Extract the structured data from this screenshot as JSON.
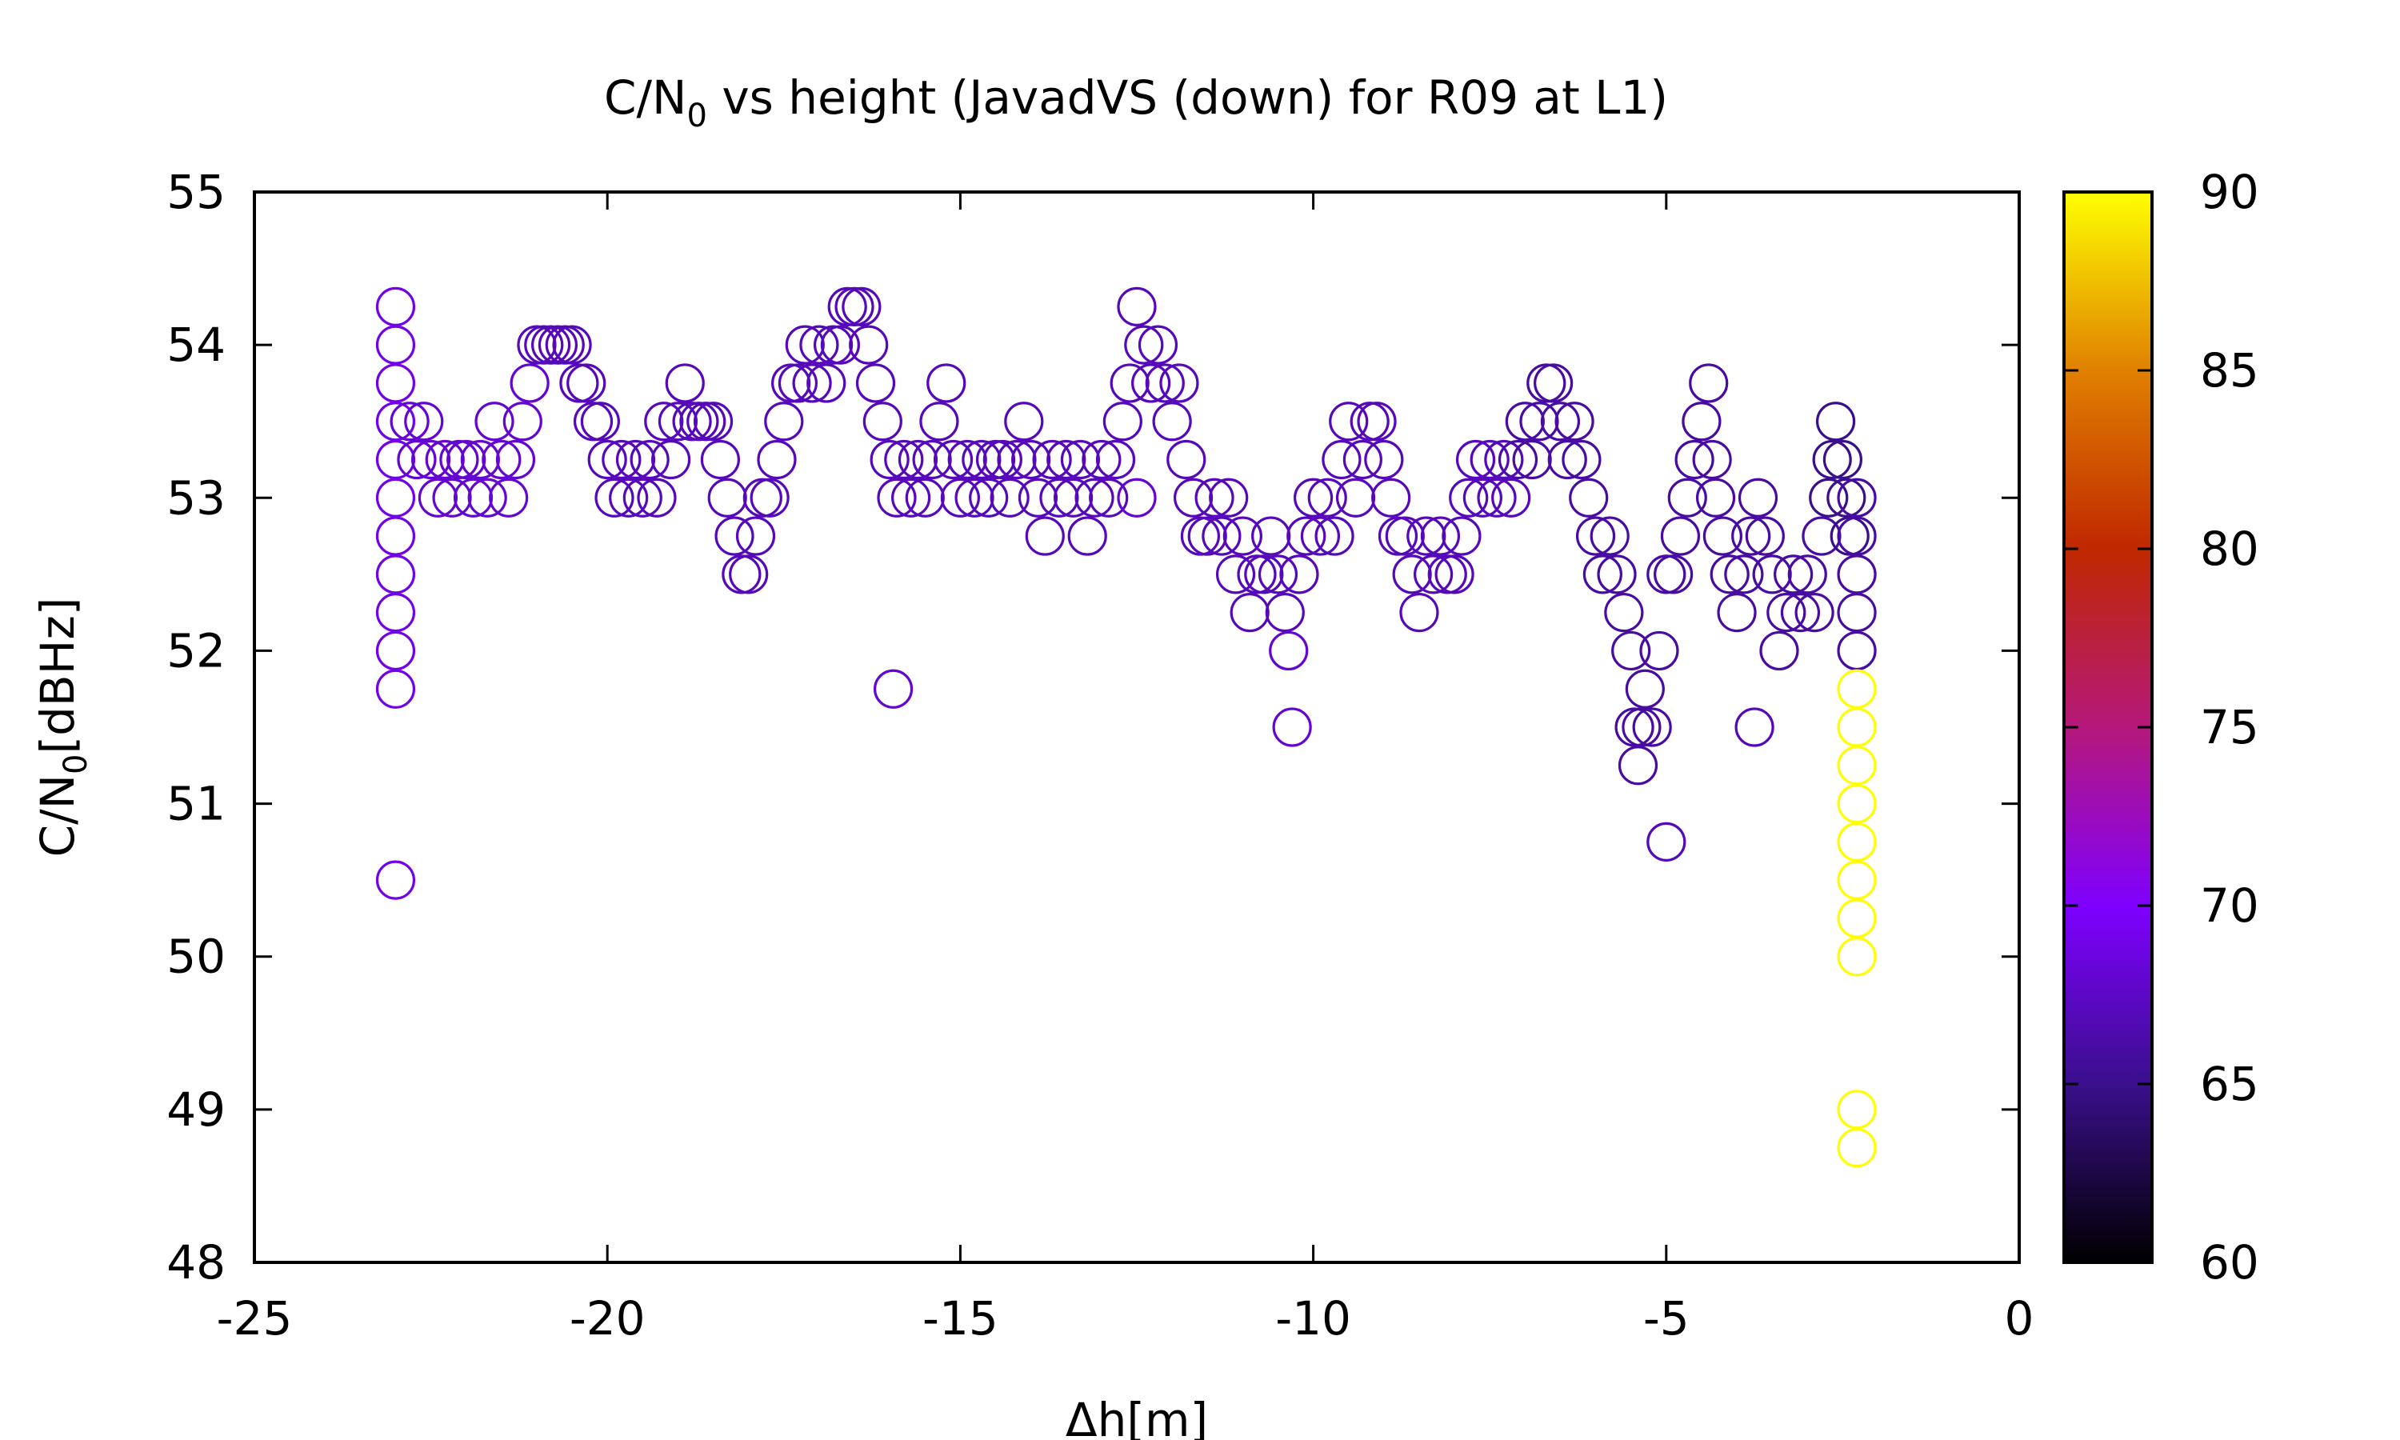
{
  "chart_data": {
    "type": "scatter",
    "title_main": "C/N",
    "title_sub": "0",
    "title_rest": " vs height (JavadVS (down) for R09 at L1)",
    "xlabel": "Δh[m]",
    "ylabel_main": "C/N",
    "ylabel_sub": "0",
    "ylabel_rest": "[dBHz]",
    "xlim": [
      -25,
      0
    ],
    "ylim": [
      48,
      55
    ],
    "xticks": [
      "-25",
      "-20",
      "-15",
      "-10",
      "-5",
      "0"
    ],
    "yticks": [
      "48",
      "49",
      "50",
      "51",
      "52",
      "53",
      "54",
      "55"
    ],
    "colorbar": {
      "range": [
        60,
        90
      ],
      "ticks": [
        "60",
        "65",
        "70",
        "75",
        "80",
        "85",
        "90"
      ],
      "palette": "black-purple-red-orange-yellow"
    },
    "grid": false,
    "legend": "none",
    "series": [
      {
        "points": [
          [
            -23.0,
            54.25,
            69
          ],
          [
            -23.0,
            54.0,
            69
          ],
          [
            -23.0,
            53.75,
            69
          ],
          [
            -23.0,
            53.5,
            69
          ],
          [
            -23.0,
            53.25,
            69
          ],
          [
            -23.0,
            53.0,
            69
          ],
          [
            -23.0,
            52.75,
            69
          ],
          [
            -23.0,
            52.5,
            69
          ],
          [
            -23.0,
            52.25,
            69
          ],
          [
            -23.0,
            52.0,
            69
          ],
          [
            -23.0,
            51.75,
            69
          ],
          [
            -23.0,
            50.5,
            69
          ],
          [
            -22.8,
            53.5,
            68
          ],
          [
            -22.7,
            53.25,
            68
          ],
          [
            -22.6,
            53.5,
            68
          ],
          [
            -22.5,
            53.25,
            68
          ],
          [
            -22.4,
            53.0,
            68
          ],
          [
            -22.3,
            53.25,
            68
          ],
          [
            -22.2,
            53.0,
            68
          ],
          [
            -22.1,
            53.25,
            68
          ],
          [
            -22.0,
            53.25,
            68
          ],
          [
            -21.9,
            53.0,
            68
          ],
          [
            -21.8,
            53.25,
            68
          ],
          [
            -21.7,
            53.0,
            68
          ],
          [
            -21.6,
            53.5,
            68
          ],
          [
            -21.5,
            53.25,
            68
          ],
          [
            -21.4,
            53.0,
            68
          ],
          [
            -21.3,
            53.25,
            68
          ],
          [
            -21.2,
            53.5,
            68
          ],
          [
            -21.1,
            53.75,
            68
          ],
          [
            -21.0,
            54.0,
            67
          ],
          [
            -20.9,
            54.0,
            67
          ],
          [
            -20.8,
            54.0,
            67
          ],
          [
            -20.7,
            54.0,
            67
          ],
          [
            -20.6,
            54.0,
            67
          ],
          [
            -20.5,
            54.0,
            67
          ],
          [
            -20.4,
            53.75,
            67
          ],
          [
            -20.3,
            53.75,
            67
          ],
          [
            -20.2,
            53.5,
            67
          ],
          [
            -20.1,
            53.5,
            67
          ],
          [
            -20.0,
            53.25,
            67
          ],
          [
            -19.9,
            53.0,
            67
          ],
          [
            -19.8,
            53.25,
            67
          ],
          [
            -19.7,
            53.0,
            67
          ],
          [
            -19.6,
            53.25,
            67
          ],
          [
            -19.5,
            53.0,
            67
          ],
          [
            -19.4,
            53.25,
            67
          ],
          [
            -19.3,
            53.0,
            67
          ],
          [
            -19.2,
            53.5,
            67
          ],
          [
            -19.1,
            53.25,
            67
          ],
          [
            -19.0,
            53.5,
            67
          ],
          [
            -18.9,
            53.75,
            67
          ],
          [
            -18.8,
            53.5,
            67
          ],
          [
            -18.7,
            53.5,
            67
          ],
          [
            -18.6,
            53.5,
            67
          ],
          [
            -18.5,
            53.5,
            67
          ],
          [
            -18.4,
            53.25,
            67
          ],
          [
            -18.3,
            53.0,
            67
          ],
          [
            -18.2,
            52.75,
            67
          ],
          [
            -18.1,
            52.5,
            67
          ],
          [
            -18.0,
            52.5,
            67
          ],
          [
            -17.9,
            52.75,
            67
          ],
          [
            -17.8,
            53.0,
            67
          ],
          [
            -17.7,
            53.0,
            67
          ],
          [
            -17.6,
            53.25,
            67
          ],
          [
            -17.5,
            53.5,
            67
          ],
          [
            -17.4,
            53.75,
            67
          ],
          [
            -17.3,
            53.75,
            67
          ],
          [
            -17.2,
            54.0,
            67
          ],
          [
            -17.1,
            53.75,
            67
          ],
          [
            -17.0,
            54.0,
            67
          ],
          [
            -16.9,
            53.75,
            67
          ],
          [
            -16.8,
            54.0,
            67
          ],
          [
            -16.7,
            54.0,
            67
          ],
          [
            -16.6,
            54.25,
            67
          ],
          [
            -16.5,
            54.25,
            67
          ],
          [
            -16.4,
            54.25,
            67
          ],
          [
            -16.3,
            54.0,
            67
          ],
          [
            -16.2,
            53.75,
            67
          ],
          [
            -16.1,
            53.5,
            67
          ],
          [
            -16.0,
            53.25,
            67
          ],
          [
            -15.9,
            53.0,
            67
          ],
          [
            -15.95,
            51.75,
            68
          ],
          [
            -15.8,
            53.25,
            67
          ],
          [
            -15.7,
            53.0,
            67
          ],
          [
            -15.6,
            53.25,
            67
          ],
          [
            -15.5,
            53.0,
            67
          ],
          [
            -15.4,
            53.25,
            67
          ],
          [
            -15.3,
            53.5,
            67
          ],
          [
            -15.2,
            53.75,
            67
          ],
          [
            -15.1,
            53.25,
            67
          ],
          [
            -15.0,
            53.0,
            67
          ],
          [
            -14.9,
            53.25,
            67
          ],
          [
            -14.8,
            53.0,
            67
          ],
          [
            -14.7,
            53.25,
            67
          ],
          [
            -14.6,
            53.0,
            67
          ],
          [
            -14.5,
            53.25,
            67
          ],
          [
            -14.4,
            53.25,
            67
          ],
          [
            -14.3,
            53.0,
            67
          ],
          [
            -14.2,
            53.25,
            67
          ],
          [
            -14.1,
            53.5,
            67
          ],
          [
            -14.0,
            53.25,
            67
          ],
          [
            -13.9,
            53.0,
            67
          ],
          [
            -13.8,
            52.75,
            67
          ],
          [
            -13.7,
            53.25,
            67
          ],
          [
            -13.6,
            53.0,
            67
          ],
          [
            -13.5,
            53.25,
            67
          ],
          [
            -13.4,
            53.0,
            67
          ],
          [
            -13.3,
            53.25,
            67
          ],
          [
            -13.2,
            52.75,
            67
          ],
          [
            -13.1,
            53.0,
            67
          ],
          [
            -13.0,
            53.25,
            67
          ],
          [
            -12.9,
            53.0,
            67
          ],
          [
            -12.8,
            53.25,
            67
          ],
          [
            -12.7,
            53.5,
            67
          ],
          [
            -12.6,
            53.75,
            67
          ],
          [
            -12.5,
            54.25,
            67
          ],
          [
            -12.4,
            54.0,
            67
          ],
          [
            -12.5,
            53.0,
            68
          ],
          [
            -12.3,
            53.75,
            67
          ],
          [
            -12.2,
            54.0,
            67
          ],
          [
            -12.1,
            53.75,
            67
          ],
          [
            -12.0,
            53.5,
            67
          ],
          [
            -11.9,
            53.75,
            67
          ],
          [
            -11.8,
            53.25,
            67
          ],
          [
            -11.7,
            53.0,
            67
          ],
          [
            -11.6,
            52.75,
            67
          ],
          [
            -11.5,
            52.75,
            67
          ],
          [
            -11.4,
            53.0,
            67
          ],
          [
            -11.3,
            52.75,
            67
          ],
          [
            -11.2,
            53.0,
            67
          ],
          [
            -11.1,
            52.5,
            67
          ],
          [
            -11.0,
            52.75,
            67
          ],
          [
            -10.9,
            52.25,
            67
          ],
          [
            -10.8,
            52.5,
            67
          ],
          [
            -10.7,
            52.5,
            67
          ],
          [
            -10.6,
            52.75,
            67
          ],
          [
            -10.5,
            52.5,
            67
          ],
          [
            -10.4,
            52.25,
            67
          ],
          [
            -10.35,
            52.0,
            68
          ],
          [
            -10.3,
            51.5,
            68
          ],
          [
            -10.2,
            52.5,
            67
          ],
          [
            -10.1,
            52.75,
            67
          ],
          [
            -10.0,
            53.0,
            67
          ],
          [
            -9.9,
            52.75,
            67
          ],
          [
            -9.8,
            53.0,
            67
          ],
          [
            -9.7,
            52.75,
            67
          ],
          [
            -9.6,
            53.25,
            67
          ],
          [
            -9.5,
            53.5,
            67
          ],
          [
            -9.4,
            53.0,
            67
          ],
          [
            -9.3,
            53.25,
            67
          ],
          [
            -9.2,
            53.5,
            67
          ],
          [
            -9.1,
            53.5,
            67
          ],
          [
            -9.0,
            53.25,
            67
          ],
          [
            -8.9,
            53.0,
            67
          ],
          [
            -8.8,
            52.75,
            67
          ],
          [
            -8.7,
            52.75,
            67
          ],
          [
            -8.6,
            52.5,
            67
          ],
          [
            -8.5,
            52.25,
            67
          ],
          [
            -8.4,
            52.75,
            67
          ],
          [
            -8.3,
            52.5,
            67
          ],
          [
            -8.2,
            52.75,
            67
          ],
          [
            -8.1,
            52.5,
            67
          ],
          [
            -8.0,
            52.5,
            67
          ],
          [
            -7.9,
            52.75,
            67
          ],
          [
            -7.8,
            53.0,
            67
          ],
          [
            -7.7,
            53.25,
            67
          ],
          [
            -7.6,
            53.0,
            67
          ],
          [
            -7.5,
            53.25,
            67
          ],
          [
            -7.4,
            53.0,
            67
          ],
          [
            -7.3,
            53.25,
            67
          ],
          [
            -7.2,
            53.0,
            67
          ],
          [
            -7.1,
            53.25,
            66
          ],
          [
            -7.0,
            53.5,
            66
          ],
          [
            -6.9,
            53.25,
            66
          ],
          [
            -6.8,
            53.5,
            66
          ],
          [
            -6.7,
            53.75,
            66
          ],
          [
            -6.6,
            53.75,
            66
          ],
          [
            -6.5,
            53.5,
            66
          ],
          [
            -6.4,
            53.25,
            66
          ],
          [
            -6.3,
            53.5,
            66
          ],
          [
            -6.2,
            53.25,
            66
          ],
          [
            -6.1,
            53.0,
            66
          ],
          [
            -6.0,
            52.75,
            66
          ],
          [
            -5.9,
            52.5,
            66
          ],
          [
            -5.8,
            52.75,
            66
          ],
          [
            -5.7,
            52.5,
            66
          ],
          [
            -5.6,
            52.25,
            66
          ],
          [
            -5.5,
            52.0,
            66
          ],
          [
            -5.45,
            51.5,
            66
          ],
          [
            -5.4,
            51.25,
            66
          ],
          [
            -5.35,
            51.5,
            66
          ],
          [
            -5.3,
            51.75,
            66
          ],
          [
            -5.2,
            51.5,
            66
          ],
          [
            -5.1,
            52.0,
            66
          ],
          [
            -5.0,
            52.5,
            66
          ],
          [
            -5.0,
            50.75,
            67
          ],
          [
            -4.9,
            52.5,
            66
          ],
          [
            -4.8,
            52.75,
            66
          ],
          [
            -4.7,
            53.0,
            66
          ],
          [
            -4.6,
            53.25,
            66
          ],
          [
            -4.5,
            53.5,
            66
          ],
          [
            -4.4,
            53.75,
            66
          ],
          [
            -4.35,
            53.25,
            66
          ],
          [
            -4.3,
            53.0,
            66
          ],
          [
            -4.2,
            52.75,
            66
          ],
          [
            -4.1,
            52.5,
            66
          ],
          [
            -4.0,
            52.25,
            66
          ],
          [
            -3.9,
            52.5,
            66
          ],
          [
            -3.8,
            52.75,
            66
          ],
          [
            -3.75,
            51.5,
            67
          ],
          [
            -3.7,
            53.0,
            66
          ],
          [
            -3.6,
            52.75,
            66
          ],
          [
            -3.5,
            52.5,
            66
          ],
          [
            -3.4,
            52.0,
            66
          ],
          [
            -3.3,
            52.25,
            66
          ],
          [
            -3.2,
            52.5,
            66
          ],
          [
            -3.1,
            52.25,
            66
          ],
          [
            -3.0,
            52.5,
            66
          ],
          [
            -2.9,
            52.25,
            66
          ],
          [
            -2.8,
            52.75,
            66
          ],
          [
            -2.7,
            53.0,
            65
          ],
          [
            -2.65,
            53.25,
            65
          ],
          [
            -2.6,
            53.5,
            65
          ],
          [
            -2.5,
            53.25,
            65
          ],
          [
            -2.45,
            53.0,
            65
          ],
          [
            -2.4,
            52.75,
            65
          ],
          [
            -2.3,
            52.5,
            66
          ],
          [
            -2.3,
            52.25,
            66
          ],
          [
            -2.3,
            52.0,
            66
          ],
          [
            -2.3,
            52.75,
            66
          ],
          [
            -2.3,
            53.0,
            66
          ],
          [
            -2.3,
            51.75,
            90
          ],
          [
            -2.3,
            51.5,
            90
          ],
          [
            -2.3,
            51.25,
            90
          ],
          [
            -2.3,
            51.0,
            90
          ],
          [
            -2.3,
            50.75,
            90
          ],
          [
            -2.3,
            50.5,
            90
          ],
          [
            -2.3,
            50.25,
            90
          ],
          [
            -2.3,
            50.0,
            90
          ],
          [
            -2.3,
            49.0,
            90
          ],
          [
            -2.3,
            48.75,
            90
          ]
        ]
      }
    ]
  }
}
